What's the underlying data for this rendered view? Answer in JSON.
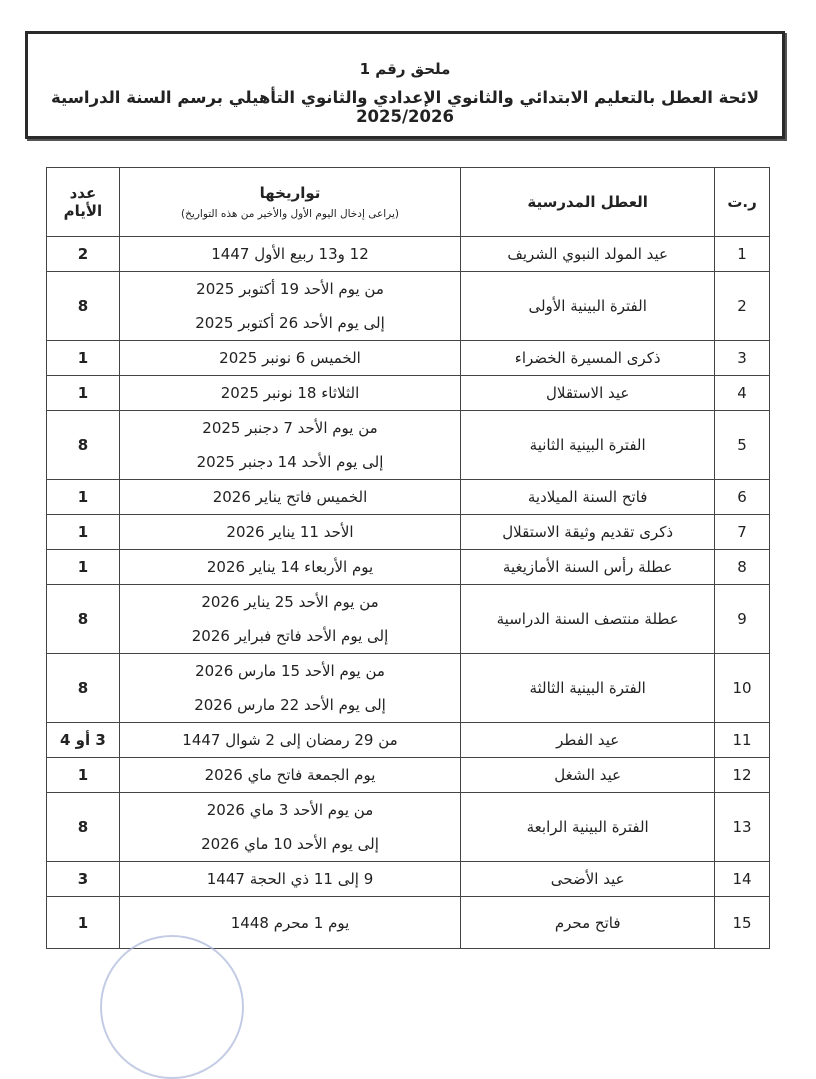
{
  "header": {
    "annex": "ملحق رقم 1",
    "title": "لائحة العطل بالتعليم الابتدائي والثانوي الإعدادي والثانوي التأهيلي برسم السنة الدراسية 2025/2026"
  },
  "table": {
    "columns": {
      "num": "ر.ت",
      "holiday": "العطل المدرسية",
      "dates": "تواريخها",
      "dates_note": "(يراعى إدخال اليوم الأول والأخير من هذه التواريخ)",
      "days_line1": "عدد",
      "days_line2": "الأيام"
    },
    "rows": [
      {
        "num": "1",
        "holiday": "عيد المولد النبوي الشريف",
        "dates": [
          "12 و13 ربيع الأول 1447"
        ],
        "days": "2"
      },
      {
        "num": "2",
        "holiday": "الفترة البينية الأولى",
        "dates": [
          "من يوم الأحد 19 أكتوبر 2025",
          "إلى يوم الأحد 26 أكتوبر 2025"
        ],
        "days": "8"
      },
      {
        "num": "3",
        "holiday": "ذكرى المسيرة الخضراء",
        "dates": [
          "الخميس 6 نونبر 2025"
        ],
        "days": "1"
      },
      {
        "num": "4",
        "holiday": "عيد الاستقلال",
        "dates": [
          "الثلاثاء 18 نونبر 2025"
        ],
        "days": "1"
      },
      {
        "num": "5",
        "holiday": "الفترة البينية الثانية",
        "dates": [
          "من يوم الأحد 7 دجنبر 2025",
          "إلى يوم الأحد 14 دجنبر 2025"
        ],
        "days": "8"
      },
      {
        "num": "6",
        "holiday": "فاتح السنة الميلادية",
        "dates": [
          "الخميس فاتح يناير 2026"
        ],
        "days": "1"
      },
      {
        "num": "7",
        "holiday": "ذكرى تقديم وثيقة الاستقلال",
        "dates": [
          "الأحد 11 يناير 2026"
        ],
        "days": "1"
      },
      {
        "num": "8",
        "holiday": "عطلة رأس السنة الأمازيغية",
        "dates": [
          "يوم الأربعاء 14 يناير 2026"
        ],
        "days": "1"
      },
      {
        "num": "9",
        "holiday": "عطلة منتصف السنة الدراسية",
        "dates": [
          "من يوم الأحد 25 يناير 2026",
          "إلى يوم الأحد فاتح فبراير 2026"
        ],
        "days": "8"
      },
      {
        "num": "10",
        "holiday": "الفترة البينية الثالثة",
        "dates": [
          "من يوم الأحد 15 مارس 2026",
          "إلى يوم الأحد 22 مارس 2026"
        ],
        "days": "8"
      },
      {
        "num": "11",
        "holiday": "عيد الفطر",
        "dates": [
          "من 29 رمضان إلى 2 شوال 1447"
        ],
        "days": "3 أو 4"
      },
      {
        "num": "12",
        "holiday": "عيد الشغل",
        "dates": [
          "يوم الجمعة فاتح ماي 2026"
        ],
        "days": "1"
      },
      {
        "num": "13",
        "holiday": "الفترة البينية الرابعة",
        "dates": [
          "من يوم الأحد 3 ماي 2026",
          "إلى يوم الأحد 10 ماي 2026"
        ],
        "days": "8"
      },
      {
        "num": "14",
        "holiday": "عيد الأضحى",
        "dates": [
          "9 إلى 11 ذي الحجة 1447"
        ],
        "days": "3"
      },
      {
        "num": "15",
        "holiday": "فاتح محرم",
        "dates": [
          "يوم 1 محرم 1448"
        ],
        "days": "1"
      }
    ]
  }
}
